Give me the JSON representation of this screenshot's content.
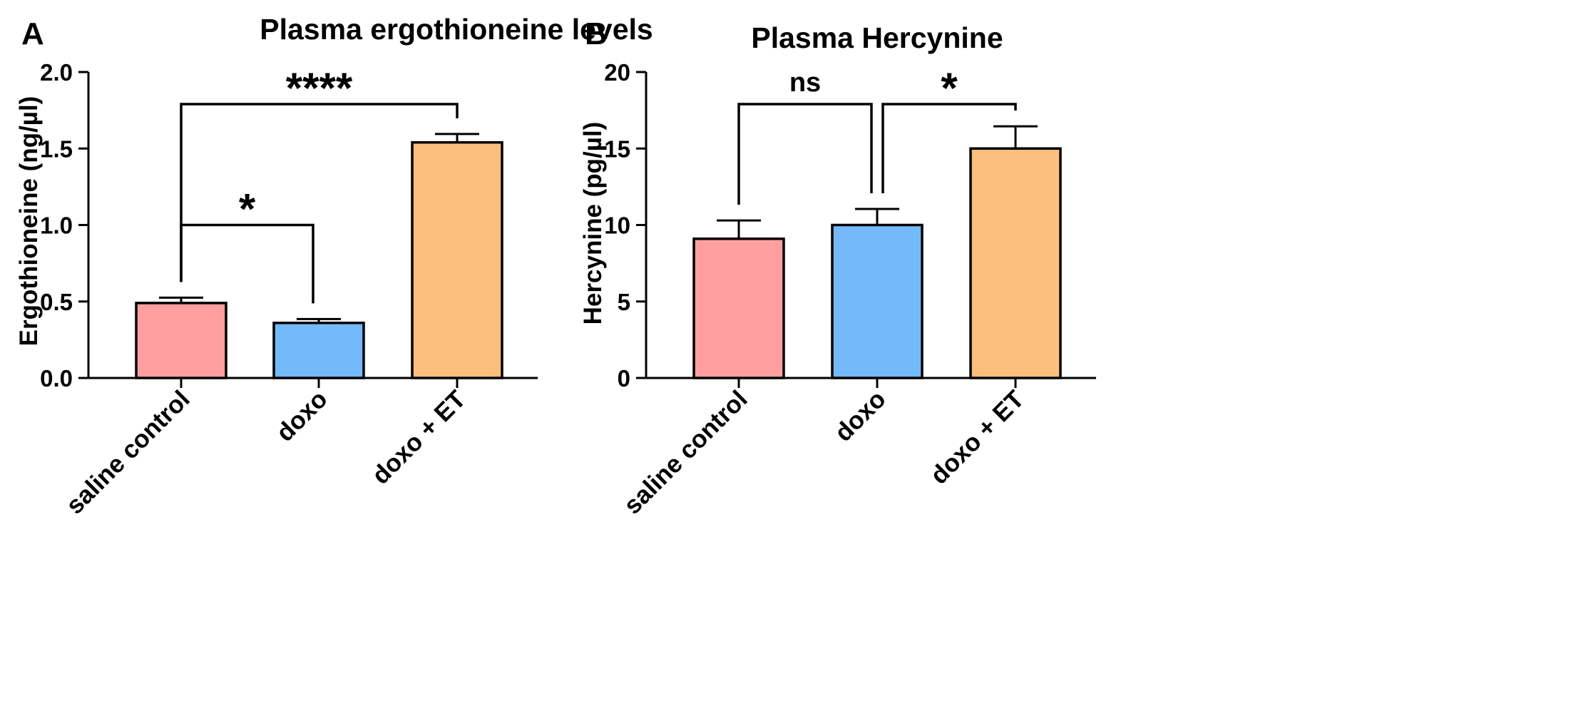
{
  "chart_data": [
    {
      "panel": "A",
      "type": "bar",
      "title": "Plasma ergothioneine levels",
      "xlabel": "",
      "ylabel": "Ergothioneine (ng/µl)",
      "ylim": [
        0,
        2.0
      ],
      "yticks": [
        0.0,
        0.5,
        1.0,
        1.5,
        2.0
      ],
      "ytick_labels": [
        "0.0",
        "0.5",
        "1.0",
        "1.5",
        "2.0"
      ],
      "categories": [
        "saline control",
        "doxo",
        "doxo + ET"
      ],
      "values": [
        0.49,
        0.36,
        1.54
      ],
      "errors": [
        0.035,
        0.025,
        0.055
      ],
      "colors": [
        "#FF9F9F",
        "#74BAF8",
        "#FBBF7B"
      ],
      "comparisons": [
        {
          "from": 0,
          "to": 1,
          "label": "*",
          "level": 1.0
        },
        {
          "from": 0,
          "to": 2,
          "label": "****",
          "level": 1.79
        }
      ]
    },
    {
      "panel": "B",
      "type": "bar",
      "title": "Plasma Hercynine",
      "xlabel": "",
      "ylabel": "Hercynine  (pg/µl)",
      "ylim": [
        0,
        20
      ],
      "yticks": [
        0,
        5,
        10,
        15,
        20
      ],
      "ytick_labels": [
        "0",
        "5",
        "10",
        "15",
        "20"
      ],
      "categories": [
        "saline control",
        "doxo",
        "doxo + ET"
      ],
      "values": [
        9.1,
        10.0,
        15.0
      ],
      "errors": [
        1.2,
        1.05,
        1.45
      ],
      "colors": [
        "#FF9F9F",
        "#74BAF8",
        "#FBBF7B"
      ],
      "comparisons": [
        {
          "from": 0,
          "to": 1,
          "label": "ns",
          "level": 17.9
        },
        {
          "from": 1,
          "to": 2,
          "label": "*",
          "level": 17.9
        }
      ]
    }
  ]
}
